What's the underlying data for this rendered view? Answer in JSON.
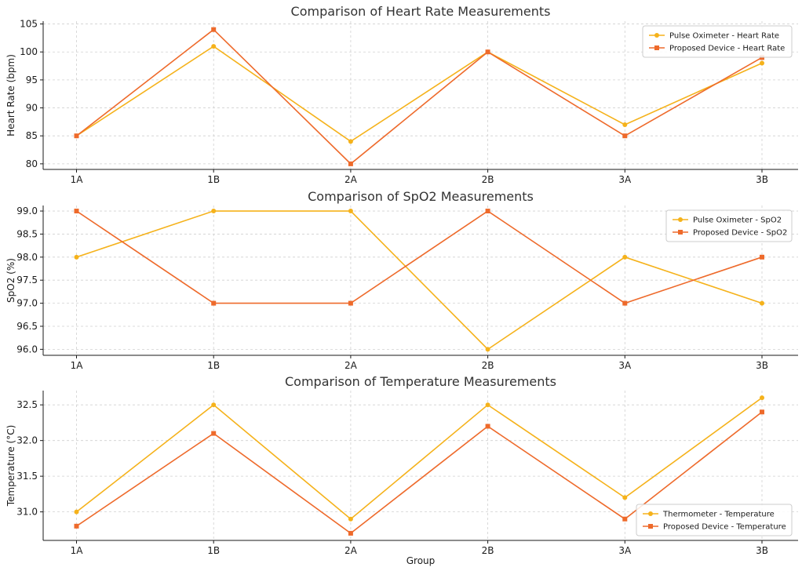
{
  "colors": {
    "pulse": "#F5B21B",
    "device": "#EE6A2B"
  },
  "xlabel": "Group",
  "chart_data": [
    {
      "type": "line",
      "title": "Comparison of Heart Rate Measurements",
      "xlabel": "",
      "ylabel": "Heart Rate (bpm)",
      "categories": [
        "1A",
        "1B",
        "2A",
        "2B",
        "3A",
        "3B"
      ],
      "ylim": [
        79,
        105.5
      ],
      "yticks": [
        80,
        85,
        90,
        95,
        100,
        105
      ],
      "yticklabels": [
        "80",
        "85",
        "90",
        "95",
        "100",
        "105"
      ],
      "grid": true,
      "legend": "top-right",
      "series": [
        {
          "name": "Pulse Oximeter - Heart Rate",
          "values": [
            85,
            101,
            84,
            100,
            87,
            98
          ],
          "marker": "circle"
        },
        {
          "name": "Proposed Device - Heart Rate",
          "values": [
            85,
            104,
            80,
            100,
            85,
            99
          ],
          "marker": "square"
        }
      ]
    },
    {
      "type": "line",
      "title": "Comparison of SpO2 Measurements",
      "xlabel": "",
      "ylabel": "SpO2 (%)",
      "categories": [
        "1A",
        "1B",
        "2A",
        "2B",
        "3A",
        "3B"
      ],
      "ylim": [
        95.87,
        99.12
      ],
      "yticks": [
        96.0,
        96.5,
        97.0,
        97.5,
        98.0,
        98.5,
        99.0
      ],
      "yticklabels": [
        "96.0",
        "96.5",
        "97.0",
        "97.5",
        "98.0",
        "98.5",
        "99.0"
      ],
      "grid": true,
      "legend": "top-right",
      "series": [
        {
          "name": "Pulse Oximeter - SpO2",
          "values": [
            98,
            99,
            99,
            96,
            98,
            97
          ],
          "marker": "circle"
        },
        {
          "name": "Proposed Device - SpO2",
          "values": [
            99,
            97,
            97,
            99,
            97,
            98
          ],
          "marker": "square"
        }
      ]
    },
    {
      "type": "line",
      "title": "Comparison of Temperature Measurements",
      "xlabel": "Group",
      "ylabel": "Temperature (°C)",
      "categories": [
        "1A",
        "1B",
        "2A",
        "2B",
        "3A",
        "3B"
      ],
      "ylim": [
        30.6,
        32.7
      ],
      "yticks": [
        31.0,
        31.5,
        32.0,
        32.5
      ],
      "yticklabels": [
        "31.0",
        "31.5",
        "32.0",
        "32.5"
      ],
      "grid": true,
      "legend": "bottom-right",
      "series": [
        {
          "name": "Thermometer - Temperature",
          "values": [
            31.0,
            32.5,
            30.9,
            32.5,
            31.2,
            32.6
          ],
          "marker": "circle"
        },
        {
          "name": "Proposed Device - Temperature",
          "values": [
            30.8,
            32.1,
            30.7,
            32.2,
            30.9,
            32.4
          ],
          "marker": "square"
        }
      ]
    }
  ]
}
